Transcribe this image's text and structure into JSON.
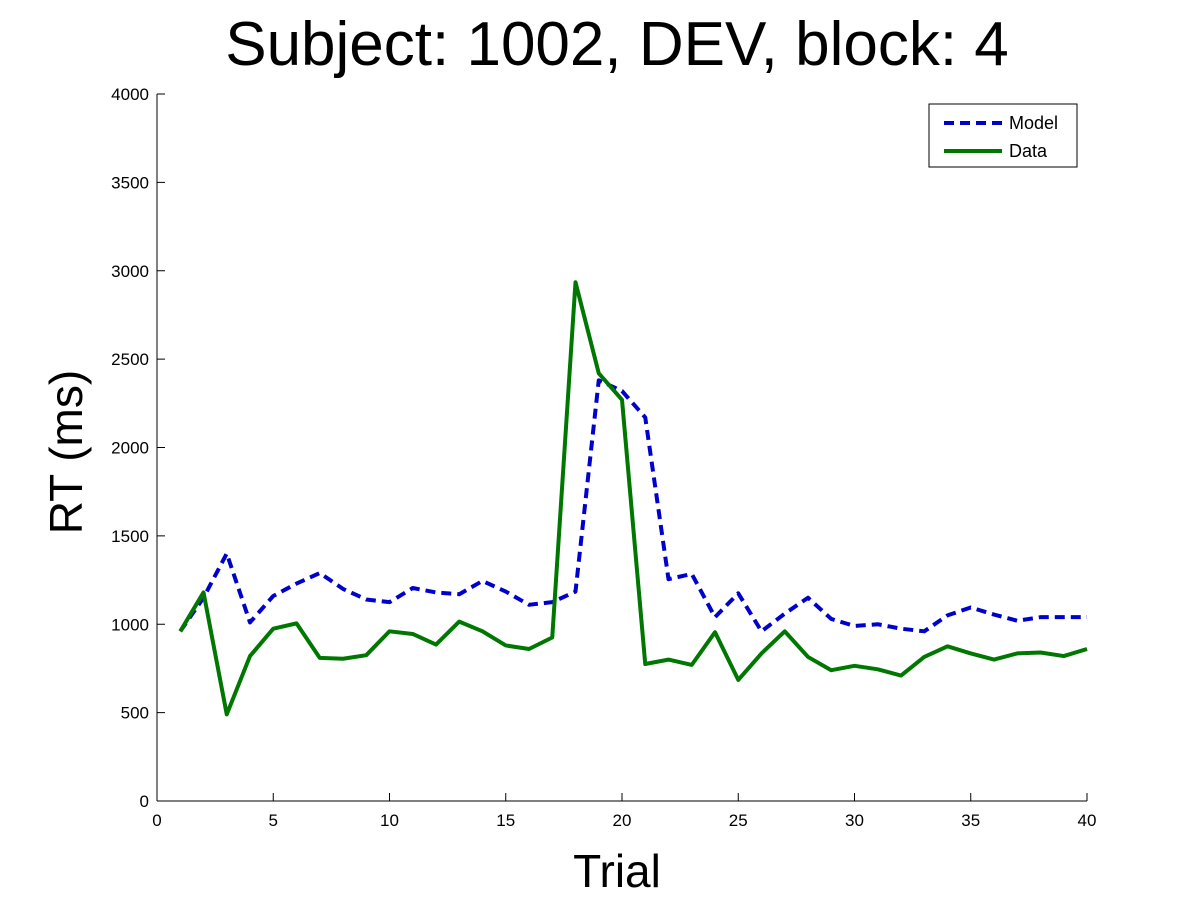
{
  "chart_data": {
    "type": "line",
    "title": "Subject: 1002, DEV, block: 4",
    "xlabel": "Trial",
    "ylabel": "RT (ms)",
    "xlim": [
      0,
      40
    ],
    "ylim": [
      0,
      4000
    ],
    "xticks": [
      0,
      5,
      10,
      15,
      20,
      25,
      30,
      35,
      40
    ],
    "yticks": [
      0,
      500,
      1000,
      1500,
      2000,
      2500,
      3000,
      3500,
      4000
    ],
    "grid": false,
    "legend_position": "top-right",
    "x": [
      1,
      2,
      3,
      4,
      5,
      6,
      7,
      8,
      9,
      10,
      11,
      12,
      13,
      14,
      15,
      16,
      17,
      18,
      19,
      20,
      21,
      22,
      23,
      24,
      25,
      26,
      27,
      28,
      29,
      30,
      31,
      32,
      33,
      34,
      35,
      36,
      37,
      38,
      39,
      40
    ],
    "series": [
      {
        "name": "Model",
        "color": "#0000cc",
        "style": "dashed",
        "values": [
          960,
          1150,
          1400,
          1010,
          1160,
          1230,
          1290,
          1200,
          1140,
          1125,
          1205,
          1180,
          1170,
          1245,
          1185,
          1110,
          1125,
          1185,
          2380,
          2320,
          2170,
          1255,
          1285,
          1040,
          1175,
          960,
          1060,
          1150,
          1030,
          990,
          1000,
          975,
          960,
          1050,
          1095,
          1055,
          1020,
          1040,
          1040,
          1040
        ]
      },
      {
        "name": "Data",
        "color": "#007700",
        "style": "solid",
        "values": [
          960,
          1180,
          490,
          820,
          975,
          1005,
          810,
          805,
          825,
          960,
          945,
          885,
          1015,
          960,
          880,
          860,
          925,
          2935,
          2420,
          2270,
          775,
          800,
          770,
          955,
          685,
          835,
          960,
          815,
          740,
          765,
          745,
          710,
          815,
          875,
          835,
          800,
          835,
          840,
          820,
          860
        ]
      }
    ]
  }
}
